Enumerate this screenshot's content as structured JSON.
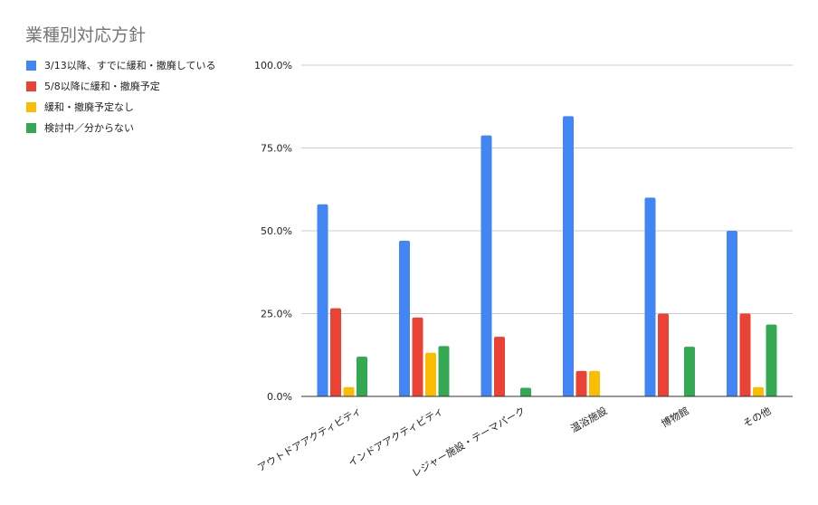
{
  "chart_data": {
    "type": "bar",
    "title": "業種別対応方針",
    "xlabel": "",
    "ylabel": "",
    "ylim": [
      0,
      100
    ],
    "yticks": [
      "0.0%",
      "25.0%",
      "50.0%",
      "75.0%",
      "100.0%"
    ],
    "ytick_values": [
      0,
      25,
      50,
      75,
      100
    ],
    "grid": true,
    "legend_position": "left",
    "categories": [
      "アウトドアアクティビティ",
      "インドアアクティビティ",
      "レジャー施設・テーマパーク",
      "温浴施設",
      "博物館",
      "その他"
    ],
    "series": [
      {
        "name": "3/13以降、すでに緩和・撤廃している",
        "color": "#4285f4",
        "values": [
          58.0,
          47.0,
          78.8,
          84.6,
          60.0,
          50.0
        ]
      },
      {
        "name": "5/8以降に緩和・撤廃予定",
        "color": "#ea4335",
        "values": [
          26.6,
          23.8,
          18.0,
          7.7,
          25.0,
          25.0
        ]
      },
      {
        "name": "緩和・撤廃予定なし",
        "color": "#fbbc04",
        "values": [
          2.8,
          13.2,
          0,
          7.7,
          0,
          2.8
        ]
      },
      {
        "name": "検討中／分からない",
        "color": "#34a853",
        "values": [
          12.0,
          15.2,
          2.6,
          0,
          15.0,
          21.7
        ]
      }
    ]
  }
}
